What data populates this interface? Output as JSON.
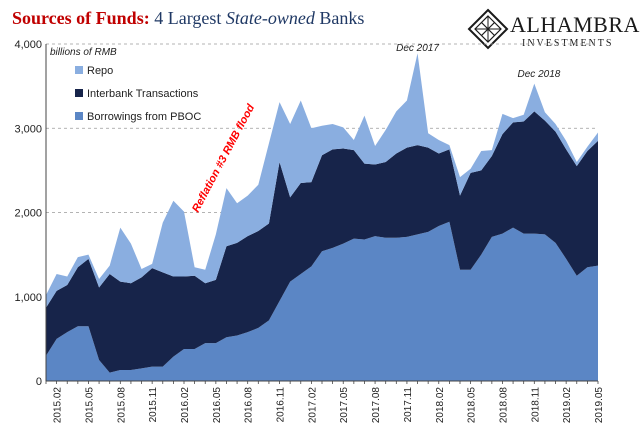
{
  "header": {
    "title_bold": "Sources of Funds:",
    "title_rest_1": "4 Largest",
    "title_italic": "State-owned",
    "title_rest_2": "Banks"
  },
  "logo": {
    "name": "ALHAMBRA",
    "sub": "INVESTMENTS",
    "icon": "diamond-lattice-icon"
  },
  "chart_data": {
    "type": "area",
    "stacked": true,
    "unit_label": "billions of RMB",
    "ylim": [
      0,
      4000
    ],
    "yticks": [
      0,
      1000,
      2000,
      3000,
      4000
    ],
    "ytick_labels": [
      "0",
      "1,000",
      "2,000",
      "3,000",
      "4,000"
    ],
    "grid": "horizontal dashed",
    "legend_position": "top-left",
    "x_tick_labels": [
      "2015.02",
      "2015.05",
      "2015.08",
      "2015.11",
      "2016.02",
      "2016.05",
      "2016.08",
      "2016.11",
      "2017.02",
      "2017.05",
      "2017.08",
      "2017.11",
      "2018.02",
      "2018.05",
      "2018.08",
      "2018.11",
      "2019.02",
      "2019.05"
    ],
    "x_tick_every": 3,
    "x": [
      "2015.01",
      "2015.02",
      "2015.03",
      "2015.04",
      "2015.05",
      "2015.06",
      "2015.07",
      "2015.08",
      "2015.09",
      "2015.10",
      "2015.11",
      "2015.12",
      "2016.01",
      "2016.02",
      "2016.03",
      "2016.04",
      "2016.05",
      "2016.06",
      "2016.07",
      "2016.08",
      "2016.09",
      "2016.10",
      "2016.11",
      "2016.12",
      "2017.01",
      "2017.02",
      "2017.03",
      "2017.04",
      "2017.05",
      "2017.06",
      "2017.07",
      "2017.08",
      "2017.09",
      "2017.10",
      "2017.11",
      "2017.12",
      "2018.01",
      "2018.02",
      "2018.03",
      "2018.04",
      "2018.05",
      "2018.06",
      "2018.07",
      "2018.08",
      "2018.09",
      "2018.10",
      "2018.11",
      "2018.12",
      "2019.01",
      "2019.02",
      "2019.03",
      "2019.04",
      "2019.05"
    ],
    "series": [
      {
        "name": "Borrowings from PBOC",
        "color": "#5b86c5",
        "values": [
          300,
          500,
          580,
          650,
          650,
          250,
          100,
          130,
          130,
          150,
          170,
          170,
          290,
          380,
          380,
          450,
          450,
          520,
          540,
          580,
          630,
          720,
          950,
          1180,
          1270,
          1360,
          1540,
          1580,
          1630,
          1690,
          1680,
          1720,
          1700,
          1700,
          1710,
          1740,
          1770,
          1840,
          1890,
          1320,
          1320,
          1500,
          1710,
          1750,
          1820,
          1750,
          1750,
          1740,
          1640,
          1450,
          1250,
          1350,
          1370
        ]
      },
      {
        "name": "Interbank Transactions",
        "color": "#17244a",
        "values": [
          570,
          570,
          560,
          700,
          800,
          860,
          1170,
          1050,
          1030,
          1080,
          1170,
          1120,
          950,
          860,
          870,
          710,
          750,
          1080,
          1100,
          1140,
          1150,
          1150,
          1650,
          1000,
          1080,
          1000,
          1140,
          1170,
          1130,
          1050,
          900,
          850,
          900,
          1000,
          1060,
          1060,
          1000,
          860,
          860,
          880,
          1150,
          1000,
          960,
          1180,
          1250,
          1330,
          1450,
          1350,
          1320,
          1300,
          1300,
          1380,
          1480
        ]
      },
      {
        "name": "Repo",
        "color": "#8aaee0",
        "values": [
          150,
          200,
          100,
          120,
          50,
          100,
          100,
          640,
          470,
          100,
          50,
          590,
          900,
          770,
          100,
          160,
          540,
          690,
          470,
          480,
          550,
          950,
          710,
          870,
          980,
          640,
          350,
          300,
          250,
          120,
          570,
          220,
          380,
          500,
          560,
          1090,
          170,
          160,
          50,
          220,
          50,
          230,
          70,
          240,
          50,
          80,
          330,
          100,
          90,
          100,
          50,
          50,
          100
        ]
      }
    ],
    "annotations": [
      {
        "text": "Dec 2017",
        "x": "2017.12"
      },
      {
        "text": "Dec 2018",
        "x": "2018.12"
      },
      {
        "text": "Reflation #3 RMB flood",
        "color": "#ff0000"
      }
    ]
  }
}
